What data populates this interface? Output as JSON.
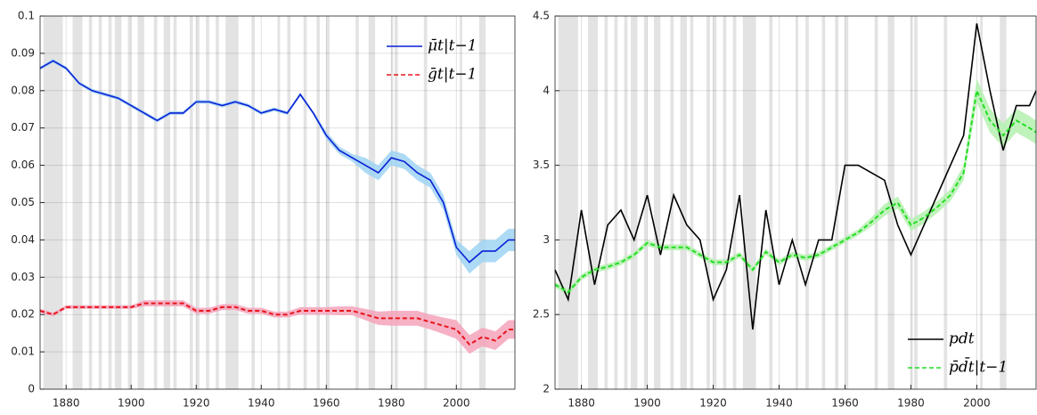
{
  "chart_data": [
    {
      "type": "line",
      "xlim": [
        1872,
        2018
      ],
      "ylim": [
        0,
        0.1
      ],
      "xticks": [
        1880,
        1900,
        1920,
        1940,
        1960,
        1980,
        2000
      ],
      "yticks": [
        0,
        0.01,
        0.02,
        0.03,
        0.04,
        0.05,
        0.06,
        0.07,
        0.08,
        0.09,
        0.1
      ],
      "grid": true,
      "legend": "upper right",
      "recessions": [
        [
          1873,
          1879
        ],
        [
          1882,
          1885
        ],
        [
          1887,
          1888
        ],
        [
          1890,
          1891
        ],
        [
          1893,
          1894
        ],
        [
          1895,
          1897
        ],
        [
          1899,
          1900
        ],
        [
          1902,
          1904
        ],
        [
          1907,
          1908
        ],
        [
          1910,
          1912
        ],
        [
          1913,
          1914
        ],
        [
          1918,
          1919
        ],
        [
          1920,
          1921
        ],
        [
          1923,
          1924
        ],
        [
          1926,
          1927
        ],
        [
          1929,
          1933
        ],
        [
          1937,
          1938
        ],
        [
          1945,
          1945.8
        ],
        [
          1948,
          1949
        ],
        [
          1953,
          1954
        ],
        [
          1957,
          1958
        ],
        [
          1960,
          1961
        ],
        [
          1969,
          1970
        ],
        [
          1973,
          1975
        ],
        [
          1980,
          1980.6
        ],
        [
          1981,
          1982
        ],
        [
          1990,
          1991
        ],
        [
          2001,
          2001.8
        ],
        [
          2007,
          2009
        ]
      ],
      "x": [
        1872,
        1876,
        1880,
        1884,
        1888,
        1892,
        1896,
        1900,
        1904,
        1908,
        1912,
        1916,
        1920,
        1924,
        1928,
        1932,
        1936,
        1940,
        1944,
        1948,
        1952,
        1956,
        1960,
        1964,
        1968,
        1972,
        1976,
        1980,
        1984,
        1988,
        1992,
        1996,
        2000,
        2004,
        2008,
        2012,
        2016,
        2018
      ],
      "series": [
        {
          "name": "μ̄t|t−1",
          "color": "#0a1fd6",
          "band_color": "#9fd3f2",
          "dash": false,
          "values": [
            0.086,
            0.088,
            0.086,
            0.082,
            0.08,
            0.079,
            0.078,
            0.076,
            0.074,
            0.072,
            0.074,
            0.074,
            0.077,
            0.077,
            0.076,
            0.077,
            0.076,
            0.074,
            0.075,
            0.074,
            0.079,
            0.074,
            0.068,
            0.064,
            0.062,
            0.06,
            0.058,
            0.062,
            0.061,
            0.058,
            0.056,
            0.05,
            0.038,
            0.034,
            0.037,
            0.037,
            0.04,
            0.04
          ],
          "lower": [
            0.0855,
            0.0875,
            0.0855,
            0.0815,
            0.0795,
            0.0785,
            0.0775,
            0.0755,
            0.0735,
            0.0715,
            0.0735,
            0.0735,
            0.0765,
            0.0765,
            0.0755,
            0.0765,
            0.0755,
            0.0735,
            0.0745,
            0.0735,
            0.0785,
            0.0735,
            0.067,
            0.063,
            0.061,
            0.058,
            0.056,
            0.06,
            0.059,
            0.056,
            0.054,
            0.048,
            0.036,
            0.031,
            0.034,
            0.034,
            0.037,
            0.037
          ],
          "upper": [
            0.0865,
            0.0885,
            0.0865,
            0.0825,
            0.0805,
            0.0795,
            0.0785,
            0.0765,
            0.0745,
            0.0725,
            0.0745,
            0.0745,
            0.0775,
            0.0775,
            0.0765,
            0.0775,
            0.0765,
            0.0745,
            0.0755,
            0.0745,
            0.0795,
            0.0745,
            0.069,
            0.065,
            0.063,
            0.062,
            0.06,
            0.064,
            0.063,
            0.06,
            0.058,
            0.052,
            0.04,
            0.037,
            0.04,
            0.04,
            0.043,
            0.043
          ]
        },
        {
          "name": "ḡt|t−1",
          "color": "#e8151b",
          "band_color": "#f4a3bb",
          "dash": true,
          "values": [
            0.021,
            0.02,
            0.022,
            0.022,
            0.022,
            0.022,
            0.022,
            0.022,
            0.023,
            0.023,
            0.023,
            0.023,
            0.021,
            0.021,
            0.022,
            0.022,
            0.021,
            0.021,
            0.02,
            0.02,
            0.021,
            0.021,
            0.021,
            0.021,
            0.021,
            0.02,
            0.019,
            0.019,
            0.019,
            0.019,
            0.018,
            0.017,
            0.016,
            0.012,
            0.014,
            0.013,
            0.016,
            0.016
          ],
          "lower": [
            0.0205,
            0.0195,
            0.0215,
            0.0215,
            0.0215,
            0.0215,
            0.0215,
            0.0215,
            0.0222,
            0.0222,
            0.0222,
            0.0222,
            0.0202,
            0.0202,
            0.0212,
            0.0212,
            0.0202,
            0.0202,
            0.0192,
            0.0192,
            0.02,
            0.02,
            0.02,
            0.0198,
            0.0198,
            0.0185,
            0.0172,
            0.017,
            0.017,
            0.017,
            0.016,
            0.0148,
            0.0135,
            0.0095,
            0.0115,
            0.0105,
            0.0135,
            0.0135
          ],
          "upper": [
            0.0215,
            0.0205,
            0.0225,
            0.0225,
            0.0225,
            0.0225,
            0.0225,
            0.0225,
            0.0238,
            0.0238,
            0.0238,
            0.0238,
            0.0218,
            0.0218,
            0.0228,
            0.0228,
            0.0218,
            0.0218,
            0.0208,
            0.0208,
            0.022,
            0.022,
            0.022,
            0.0222,
            0.0222,
            0.0215,
            0.0208,
            0.021,
            0.021,
            0.021,
            0.02,
            0.0192,
            0.0185,
            0.0145,
            0.0165,
            0.0155,
            0.0185,
            0.0185
          ]
        }
      ]
    },
    {
      "type": "line",
      "xlim": [
        1872,
        2018
      ],
      "ylim": [
        2,
        4.5
      ],
      "xticks": [
        1880,
        1900,
        1920,
        1940,
        1960,
        1980,
        2000
      ],
      "yticks": [
        2,
        2.5,
        3,
        3.5,
        4,
        4.5
      ],
      "grid": true,
      "legend": "lower right",
      "recessions": [
        [
          1873,
          1879
        ],
        [
          1882,
          1885
        ],
        [
          1887,
          1888
        ],
        [
          1890,
          1891
        ],
        [
          1893,
          1894
        ],
        [
          1895,
          1897
        ],
        [
          1899,
          1900
        ],
        [
          1902,
          1904
        ],
        [
          1907,
          1908
        ],
        [
          1910,
          1912
        ],
        [
          1913,
          1914
        ],
        [
          1918,
          1919
        ],
        [
          1920,
          1921
        ],
        [
          1923,
          1924
        ],
        [
          1926,
          1927
        ],
        [
          1929,
          1933
        ],
        [
          1937,
          1938
        ],
        [
          1945,
          1945.8
        ],
        [
          1948,
          1949
        ],
        [
          1953,
          1954
        ],
        [
          1957,
          1958
        ],
        [
          1960,
          1961
        ],
        [
          1969,
          1970
        ],
        [
          1973,
          1975
        ],
        [
          1980,
          1980.6
        ],
        [
          1981,
          1982
        ],
        [
          1990,
          1991
        ],
        [
          2001,
          2001.8
        ],
        [
          2007,
          2009
        ]
      ],
      "x": [
        1872,
        1876,
        1880,
        1884,
        1888,
        1892,
        1896,
        1900,
        1904,
        1908,
        1912,
        1916,
        1920,
        1924,
        1928,
        1932,
        1936,
        1940,
        1944,
        1948,
        1952,
        1956,
        1960,
        1964,
        1968,
        1972,
        1976,
        1980,
        1984,
        1988,
        1992,
        1996,
        2000,
        2004,
        2008,
        2012,
        2016,
        2018
      ],
      "series": [
        {
          "name": "pdt",
          "color": "#000000",
          "dash": false,
          "values": [
            2.8,
            2.6,
            3.2,
            2.7,
            3.1,
            3.2,
            3.0,
            3.3,
            2.9,
            3.3,
            3.1,
            3.0,
            2.6,
            2.8,
            3.3,
            2.4,
            3.2,
            2.7,
            3.0,
            2.7,
            3.0,
            3.0,
            3.5,
            3.5,
            3.45,
            3.4,
            3.1,
            2.9,
            3.1,
            3.3,
            3.5,
            3.7,
            4.45,
            4.0,
            3.6,
            3.9,
            3.9,
            4.0
          ]
        },
        {
          "name": "p̄d̄t|t−1",
          "color": "#22dd22",
          "band_color": "#b5f0b0",
          "dash": true,
          "values": [
            2.7,
            2.65,
            2.75,
            2.8,
            2.82,
            2.85,
            2.9,
            2.98,
            2.95,
            2.95,
            2.95,
            2.9,
            2.85,
            2.85,
            2.9,
            2.8,
            2.92,
            2.85,
            2.9,
            2.88,
            2.9,
            2.95,
            3.0,
            3.05,
            3.12,
            3.2,
            3.25,
            3.1,
            3.15,
            3.22,
            3.3,
            3.45,
            4.0,
            3.8,
            3.7,
            3.8,
            3.75,
            3.72
          ],
          "lower": [
            2.68,
            2.63,
            2.73,
            2.78,
            2.8,
            2.83,
            2.88,
            2.96,
            2.93,
            2.93,
            2.93,
            2.88,
            2.83,
            2.83,
            2.88,
            2.78,
            2.9,
            2.83,
            2.88,
            2.86,
            2.88,
            2.93,
            2.98,
            3.03,
            3.09,
            3.16,
            3.21,
            3.06,
            3.11,
            3.18,
            3.26,
            3.4,
            3.92,
            3.72,
            3.62,
            3.72,
            3.67,
            3.64
          ],
          "upper": [
            2.72,
            2.67,
            2.77,
            2.82,
            2.84,
            2.87,
            2.92,
            3.0,
            2.97,
            2.97,
            2.97,
            2.92,
            2.87,
            2.87,
            2.92,
            2.82,
            2.94,
            2.87,
            2.92,
            2.9,
            2.92,
            2.97,
            3.02,
            3.07,
            3.15,
            3.24,
            3.29,
            3.14,
            3.19,
            3.26,
            3.34,
            3.5,
            4.08,
            3.88,
            3.78,
            3.88,
            3.83,
            3.8
          ]
        }
      ]
    }
  ]
}
